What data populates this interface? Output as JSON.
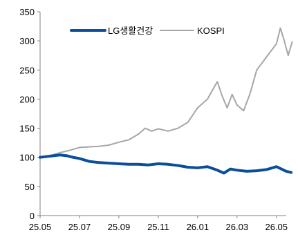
{
  "chart_data": {
    "type": "line",
    "title": "",
    "xlabel": "",
    "ylabel": "",
    "ylim": [
      0,
      350
    ],
    "yticks": [
      0,
      50,
      100,
      150,
      200,
      250,
      300,
      350
    ],
    "xticks": [
      "25.05",
      "25.07",
      "25.09",
      "25.11",
      "26.01",
      "26.03",
      "26.05"
    ],
    "grid": false,
    "legend_position": "top-center",
    "x": [
      "25.05",
      "25.06",
      "25.07",
      "25.08",
      "25.09",
      "25.10",
      "25.11",
      "25.12",
      "26.01",
      "26.02",
      "26.03",
      "26.04",
      "26.05"
    ],
    "x_detail_note": "",
    "series": [
      {
        "name": "LG생활건강",
        "color": "#0b4e99",
        "points": [
          [
            "25.05",
            100
          ],
          [
            "25.05",
            102
          ],
          [
            "25.06",
            104
          ],
          [
            "25.06",
            103
          ],
          [
            "25.06",
            100
          ],
          [
            "25.07",
            98
          ],
          [
            "25.07",
            93
          ],
          [
            "25.08",
            91
          ],
          [
            "25.08",
            90
          ],
          [
            "25.09",
            89
          ],
          [
            "25.09",
            88
          ],
          [
            "25.10",
            88
          ],
          [
            "25.10",
            87
          ],
          [
            "25.11",
            89
          ],
          [
            "25.11",
            88
          ],
          [
            "25.12",
            86
          ],
          [
            "25.12",
            83
          ],
          [
            "26.01",
            82
          ],
          [
            "26.01",
            84
          ],
          [
            "26.02",
            78
          ],
          [
            "26.02",
            73
          ],
          [
            "26.02",
            80
          ],
          [
            "26.03",
            78
          ],
          [
            "26.03",
            76
          ],
          [
            "26.04",
            77
          ],
          [
            "26.04",
            79
          ],
          [
            "26.05",
            84
          ],
          [
            "26.05",
            80
          ],
          [
            "26.05",
            76
          ],
          [
            "26.05",
            74
          ]
        ]
      },
      {
        "name": "KOSPI",
        "color": "#a6a6a6",
        "points": [
          [
            "25.05",
            100
          ],
          [
            "25.05",
            103
          ],
          [
            "25.06",
            108
          ],
          [
            "25.06",
            112
          ],
          [
            "25.07",
            117
          ],
          [
            "25.07",
            118
          ],
          [
            "25.08",
            119
          ],
          [
            "25.08",
            121
          ],
          [
            "25.09",
            126
          ],
          [
            "25.09",
            130
          ],
          [
            "25.10",
            140
          ],
          [
            "25.10",
            150
          ],
          [
            "25.10",
            145
          ],
          [
            "25.11",
            149
          ],
          [
            "25.11",
            145
          ],
          [
            "25.12",
            150
          ],
          [
            "25.12",
            160
          ],
          [
            "26.01",
            185
          ],
          [
            "26.01",
            200
          ],
          [
            "26.02",
            230
          ],
          [
            "26.02",
            205
          ],
          [
            "26.02",
            185
          ],
          [
            "26.02",
            208
          ],
          [
            "26.03",
            190
          ],
          [
            "26.03",
            180
          ],
          [
            "26.03",
            210
          ],
          [
            "26.04",
            250
          ],
          [
            "26.04",
            265
          ],
          [
            "26.04",
            280
          ],
          [
            "26.05",
            295
          ],
          [
            "26.05",
            322
          ],
          [
            "26.05",
            300
          ],
          [
            "26.05",
            275
          ],
          [
            "26.05",
            298
          ]
        ]
      }
    ]
  }
}
